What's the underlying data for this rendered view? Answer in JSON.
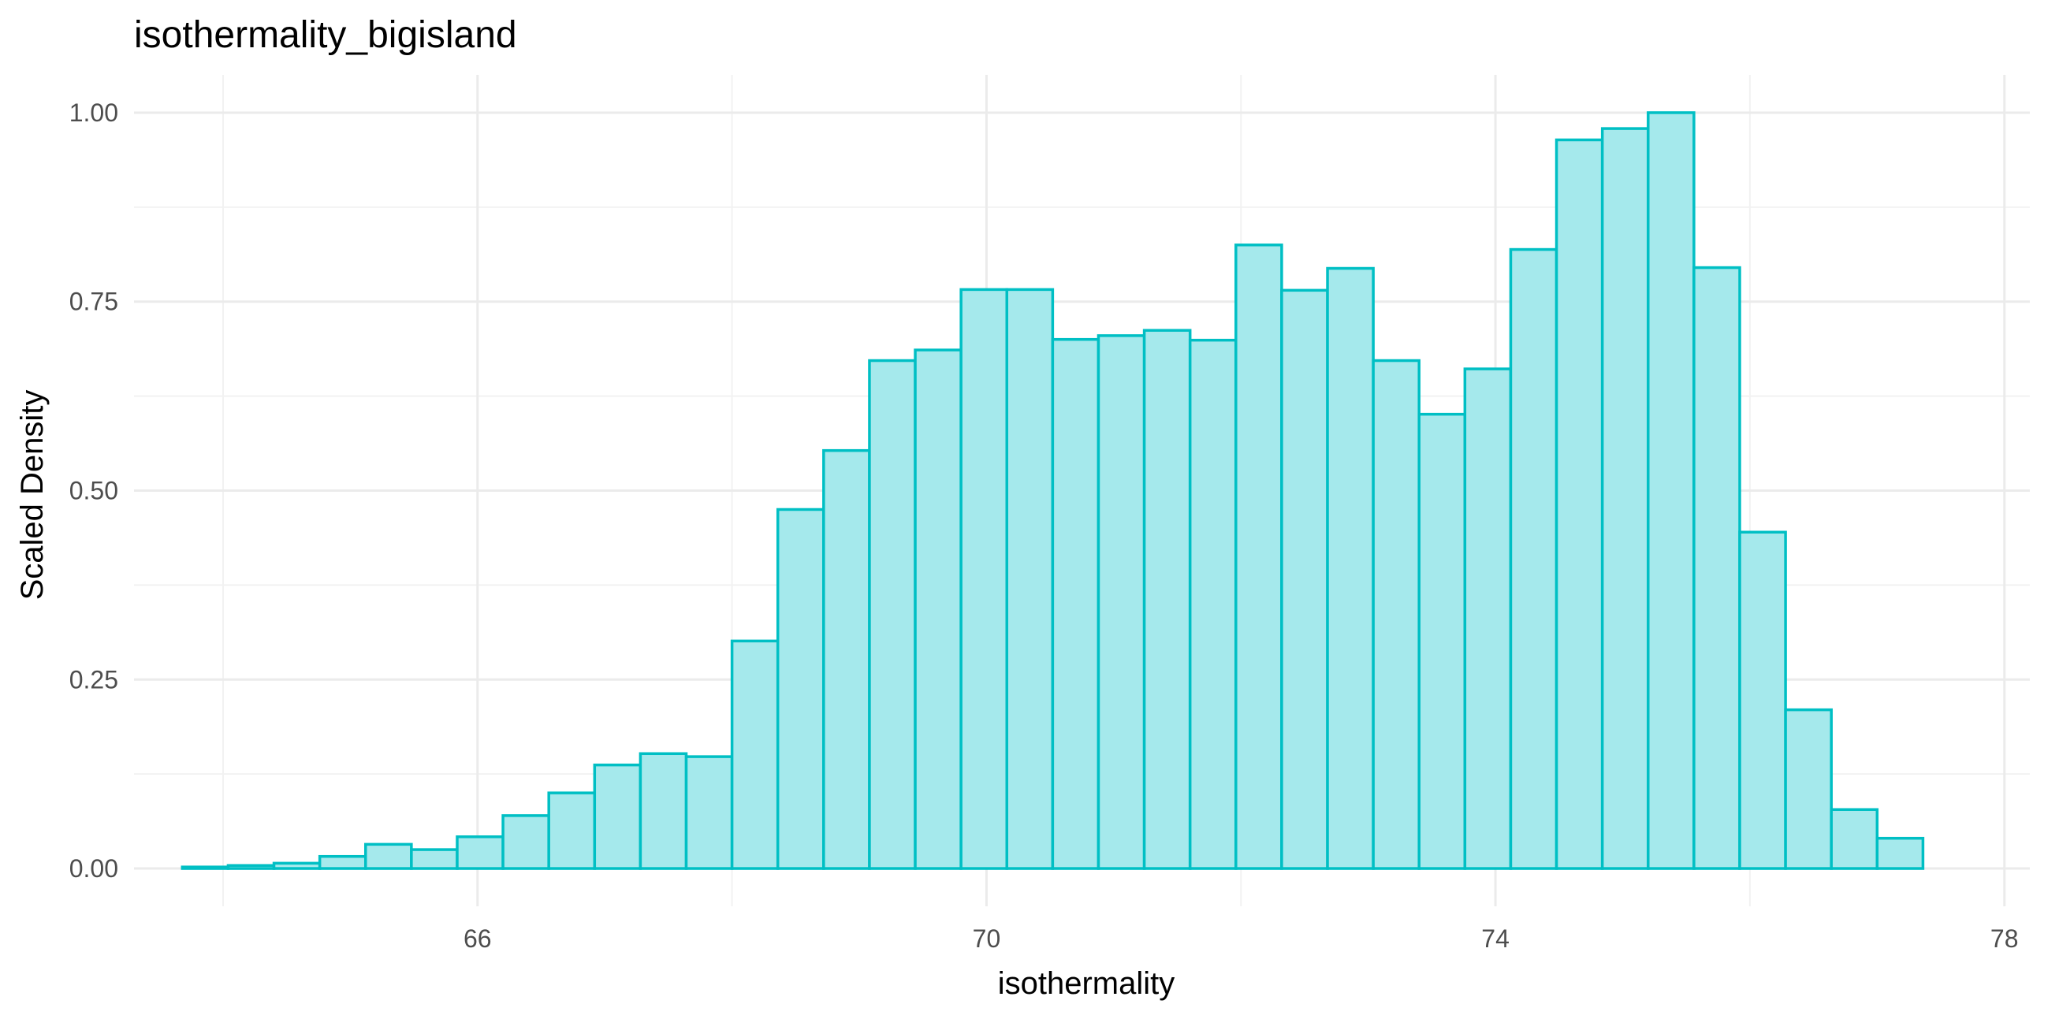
{
  "chart_data": {
    "type": "bar",
    "subtype": "histogram",
    "title": "isothermality_bigisland",
    "xlabel": "isothermality",
    "ylabel": "Scaled Density",
    "xlim": [
      63.3,
      78.2
    ],
    "ylim": [
      -0.05,
      1.05
    ],
    "x_ticks": [
      66,
      70,
      74,
      78
    ],
    "x_tick_labels": [
      "66",
      "70",
      "74",
      "78"
    ],
    "x_minor_ticks": [
      64,
      68,
      72,
      76
    ],
    "y_ticks": [
      0,
      0.25,
      0.5,
      0.75,
      1
    ],
    "y_tick_labels": [
      "0.00",
      "0.25",
      "0.50",
      "0.75",
      "1.00"
    ],
    "y_minor_ticks": [
      0.125,
      0.375,
      0.625,
      0.875
    ],
    "grid": true,
    "bin_width": 0.36,
    "bin_start": 63.68,
    "values": [
      0.002,
      0.004,
      0.007,
      0.016,
      0.032,
      0.025,
      0.042,
      0.07,
      0.1,
      0.137,
      0.152,
      0.148,
      0.301,
      0.475,
      0.553,
      0.672,
      0.686,
      0.766,
      0.766,
      0.7,
      0.705,
      0.712,
      0.699,
      0.825,
      0.765,
      0.794,
      0.672,
      0.601,
      0.661,
      0.819,
      0.964,
      0.979,
      1.0,
      0.795,
      0.445,
      0.21,
      0.078,
      0.04
    ],
    "fill_color": "#a5e9ec",
    "stroke_color": "#00bfc4"
  }
}
